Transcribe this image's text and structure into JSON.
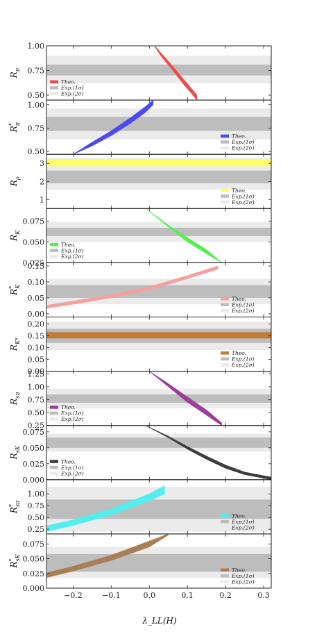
{
  "chart_data": {
    "type": "area",
    "x_label": "λ_LL(H)",
    "x_ticks": [
      -0.2,
      -0.1,
      0.0,
      0.1,
      0.2,
      0.3
    ],
    "x_tick_labels": [
      "−0.2",
      "−0.1",
      "0.0",
      "0.1",
      "0.2",
      "0.3"
    ],
    "xlim": [
      -0.27,
      0.32
    ],
    "legend_labels": {
      "theo": "Theo.",
      "exp1": "Exp.(1σ)",
      "exp2": "Exp.(2σ)"
    },
    "colors": {
      "exp1": "#bdbdbd",
      "exp2": "#ebebeb"
    },
    "panels": [
      {
        "ylabel_main": "R",
        "ylabel_sub": "π",
        "ylabel_sup": "",
        "ylim": [
          0.45,
          1.0
        ],
        "ticks": [
          0.5,
          0.75,
          1.0
        ],
        "tick_labels": [
          "0.50",
          "0.75",
          "1.00"
        ],
        "color": "#f04a4a",
        "legend_pos": "bottom-left",
        "exp1": [
          0.7,
          0.81
        ],
        "exp2": [
          0.62,
          0.9
        ],
        "theo": {
          "x": [
            0.01,
            0.03,
            0.06,
            0.09,
            0.11,
            0.125
          ],
          "y_low": [
            1.02,
            0.9,
            0.76,
            0.61,
            0.52,
            0.45
          ],
          "y_high": [
            1.02,
            0.93,
            0.8,
            0.66,
            0.57,
            0.5
          ]
        }
      },
      {
        "ylabel_main": "R",
        "ylabel_sub": "π",
        "ylabel_sup": "*",
        "ylim": [
          0.47,
          1.05
        ],
        "ticks": [
          0.5,
          0.75,
          1.0
        ],
        "tick_labels": [
          "0.50",
          "0.75",
          "1.00"
        ],
        "color": "#4a4af0",
        "legend_pos": "bottom-right",
        "exp1": [
          0.72,
          0.87
        ],
        "exp2": [
          0.63,
          0.96
        ],
        "theo": {
          "x": [
            -0.2,
            -0.15,
            -0.1,
            -0.05,
            -0.01,
            0.01
          ],
          "y_low": [
            0.47,
            0.56,
            0.67,
            0.8,
            0.92,
            1.0
          ],
          "y_high": [
            0.47,
            0.6,
            0.72,
            0.86,
            0.98,
            1.05
          ]
        }
      },
      {
        "ylabel_main": "R",
        "ylabel_sub": "ρ",
        "ylabel_sup": "",
        "ylim": [
          0.5,
          3.5
        ],
        "ticks": [
          1,
          2,
          3
        ],
        "tick_labels": [
          "1",
          "2",
          "3"
        ],
        "color": "#ffff66",
        "legend_pos": "bottom-right",
        "exp1": [
          1.9,
          2.6
        ],
        "exp2": [
          1.55,
          3.3
        ],
        "theo": {
          "x": [
            -0.27,
            0.32
          ],
          "y_low": [
            2.85,
            2.85
          ],
          "y_high": [
            3.2,
            3.2
          ]
        }
      },
      {
        "ylabel_main": "R",
        "ylabel_sub": "K",
        "ylabel_sup": "",
        "ylim": [
          0.025,
          0.09
        ],
        "ticks": [
          0.025,
          0.05,
          0.075
        ],
        "tick_labels": [
          "0.025",
          "0.050",
          "0.075"
        ],
        "color": "#55ee55",
        "legend_pos": "bottom-left",
        "exp1": [
          0.057,
          0.067
        ],
        "exp2": [
          0.05,
          0.074
        ],
        "theo": {
          "x": [
            -0.01,
            0.05,
            0.1,
            0.15,
            0.19
          ],
          "y_low": [
            0.09,
            0.068,
            0.05,
            0.036,
            0.025
          ],
          "y_high": [
            0.09,
            0.07,
            0.055,
            0.041,
            0.025
          ]
        }
      },
      {
        "ylabel_main": "R",
        "ylabel_sub": "K",
        "ylabel_sup": "*",
        "ylim": [
          -0.01,
          0.16
        ],
        "ticks": [
          0.0,
          0.05,
          0.1,
          0.15
        ],
        "tick_labels": [
          "0.00",
          "0.05",
          "0.10",
          "0.15"
        ],
        "color": "#f5a0a0",
        "legend_pos": "bottom-right",
        "exp1": [
          0.05,
          0.09
        ],
        "exp2": [
          0.03,
          0.11
        ],
        "theo": {
          "x": [
            -0.27,
            -0.2,
            -0.1,
            0.0,
            0.1,
            0.18
          ],
          "y_low": [
            0.017,
            0.03,
            0.05,
            0.075,
            0.11,
            0.14
          ],
          "y_high": [
            0.027,
            0.04,
            0.06,
            0.085,
            0.12,
            0.15
          ]
        }
      },
      {
        "ylabel_main": "R",
        "ylabel_sub": "K*",
        "ylabel_sup": "",
        "ylim": [
          0.0,
          0.23
        ],
        "ticks": [
          0.0,
          0.05,
          0.1,
          0.15,
          0.2
        ],
        "tick_labels": [
          "0.00",
          "0.05",
          "0.10",
          "0.15",
          "0.20"
        ],
        "color": "#c07d3a",
        "legend_pos": "bottom-right",
        "exp1": [
          0.12,
          0.18
        ],
        "exp2": [
          0.09,
          0.21
        ],
        "theo": {
          "x": [
            -0.27,
            0.32
          ],
          "y_low": [
            0.14,
            0.14
          ],
          "y_high": [
            0.165,
            0.165
          ]
        }
      },
      {
        "ylabel_main": "R",
        "ylabel_sub": "sπ",
        "ylabel_sup": "",
        "ylim": [
          0.25,
          1.3
        ],
        "ticks": [
          0.25,
          0.5,
          0.75,
          1.0,
          1.25
        ],
        "tick_labels": [
          "0.25",
          "0.50",
          "0.75",
          "1.00",
          "1.25"
        ],
        "color": "#9b3d9b",
        "legend_pos": "bottom-left",
        "exp1": [
          0.69,
          0.85
        ],
        "exp2": [
          0.58,
          0.96
        ],
        "theo": {
          "x": [
            0.0,
            0.05,
            0.1,
            0.15,
            0.19
          ],
          "y_low": [
            1.3,
            1.0,
            0.7,
            0.45,
            0.25
          ],
          "y_high": [
            1.3,
            1.06,
            0.8,
            0.55,
            0.3
          ]
        }
      },
      {
        "ylabel_main": "R",
        "ylabel_sub": "sK",
        "ylabel_sup": "",
        "ylim": [
          0.0,
          0.085
        ],
        "ticks": [
          0.0,
          0.025,
          0.05,
          0.075
        ],
        "tick_labels": [
          "0.000",
          "0.025",
          "0.050",
          "0.075"
        ],
        "color": "#3c3c3c",
        "legend_pos": "bottom-left",
        "exp1": [
          0.05,
          0.066
        ],
        "exp2": [
          0.044,
          0.072
        ],
        "theo": {
          "x": [
            -0.01,
            0.05,
            0.1,
            0.15,
            0.2,
            0.25,
            0.32
          ],
          "y_low": [
            0.085,
            0.066,
            0.048,
            0.032,
            0.018,
            0.008,
            0.0
          ],
          "y_high": [
            0.085,
            0.068,
            0.052,
            0.037,
            0.023,
            0.012,
            0.004
          ]
        }
      },
      {
        "ylabel_main": "R",
        "ylabel_sub": "sπ",
        "ylabel_sup": "*",
        "ylim": [
          0.15,
          1.3
        ],
        "ticks": [
          0.25,
          0.5,
          0.75,
          1.0
        ],
        "tick_labels": [
          "0.25",
          "0.50",
          "0.75",
          "1.00"
        ],
        "color": "#55eeee",
        "legend_pos": "bottom-right",
        "exp1": [
          0.47,
          0.88
        ],
        "exp2": [
          0.2,
          1.15
        ],
        "theo": {
          "x": [
            -0.27,
            -0.2,
            -0.1,
            0.0,
            0.04
          ],
          "y_low": [
            0.2,
            0.33,
            0.55,
            0.85,
            1.0
          ],
          "y_high": [
            0.32,
            0.45,
            0.68,
            1.0,
            1.17
          ]
        }
      },
      {
        "ylabel_main": "R",
        "ylabel_sub": "sK",
        "ylabel_sup": "*",
        "ylim": [
          0.0,
          0.092
        ],
        "ticks": [
          0.0,
          0.025,
          0.05,
          0.075
        ],
        "tick_labels": [
          "0.000",
          "0.025",
          "0.050",
          "0.075"
        ],
        "color": "#a87e56",
        "legend_pos": "bottom-right",
        "exp1": [
          0.028,
          0.058
        ],
        "exp2": [
          0.017,
          0.07
        ],
        "theo": {
          "x": [
            -0.27,
            -0.2,
            -0.1,
            0.0,
            0.05
          ],
          "y_low": [
            0.018,
            0.029,
            0.047,
            0.07,
            0.09
          ],
          "y_high": [
            0.026,
            0.037,
            0.056,
            0.08,
            0.092
          ]
        }
      }
    ]
  }
}
